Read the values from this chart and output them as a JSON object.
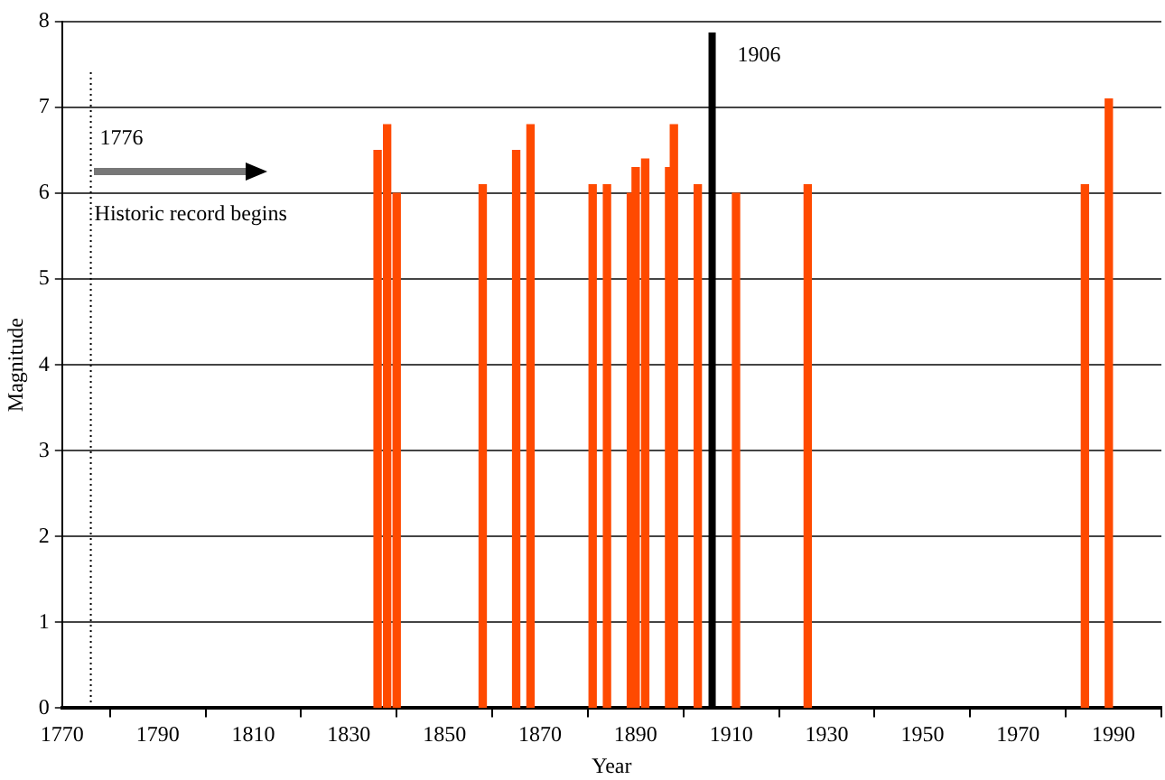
{
  "chart_data": {
    "type": "bar",
    "xlabel": "Year",
    "ylabel": "Magnitude",
    "x": [
      1836,
      1838,
      1840,
      1858,
      1865,
      1868,
      1881,
      1884,
      1889,
      1890,
      1892,
      1897,
      1898,
      1903,
      1911,
      1926,
      1984,
      1989
    ],
    "values": [
      6.5,
      6.8,
      6.0,
      6.1,
      6.5,
      6.8,
      6.1,
      6.1,
      6.0,
      6.3,
      6.4,
      6.3,
      6.8,
      6.1,
      6.0,
      6.1,
      6.1,
      7.1
    ],
    "color": "#ff4a00",
    "xlim": [
      1770,
      2000
    ],
    "xticks": [
      1770,
      1790,
      1810,
      1830,
      1850,
      1870,
      1890,
      1910,
      1930,
      1950,
      1970,
      1990
    ],
    "ylim": [
      0,
      8
    ],
    "yticks": [
      0,
      1,
      2,
      3,
      4,
      5,
      6,
      7,
      8
    ],
    "ref_lines": [
      {
        "axis": "x",
        "value": 1776,
        "label": "1776",
        "color": "#000000",
        "line_style": "dotted"
      },
      {
        "axis": "x",
        "value": 1906,
        "label": "1906",
        "color": "#000000",
        "line_style": "solid"
      }
    ],
    "annotations": [
      "Historic record begins"
    ],
    "grid": "y",
    "legend": false
  }
}
